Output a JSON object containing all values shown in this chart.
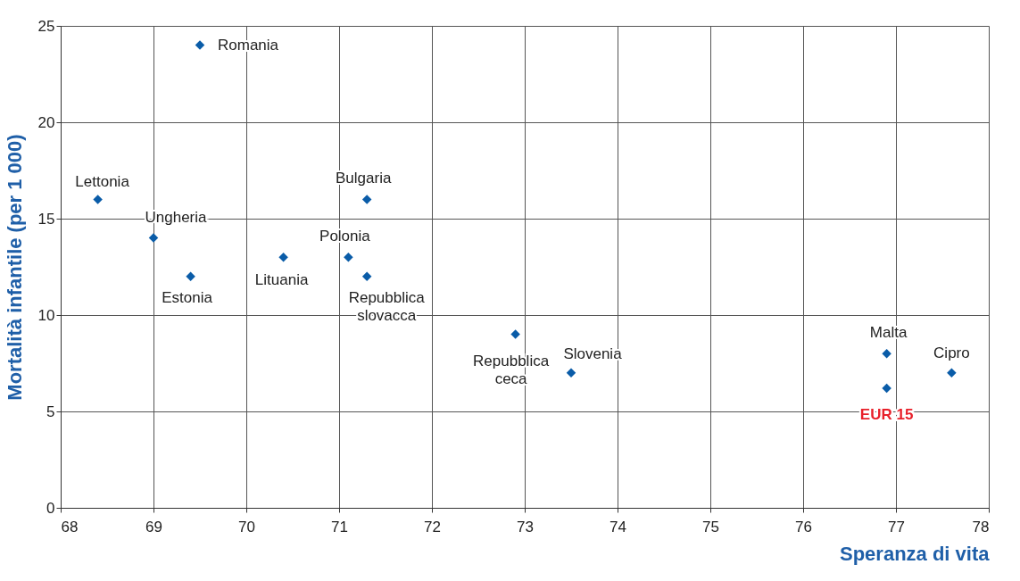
{
  "chart_data": {
    "type": "scatter",
    "xlabel": "Speranza di vita",
    "ylabel": "Mortalità infantile (per 1 000)",
    "x": [
      69.5,
      68.4,
      69.0,
      69.4,
      70.4,
      71.3,
      71.1,
      71.3,
      72.9,
      73.5,
      76.9,
      76.9,
      77.6
    ],
    "series": [
      {
        "color": "#0a5ca8",
        "values": [
          24,
          16,
          14,
          12,
          13,
          16,
          13,
          12,
          9,
          7,
          8,
          6.2,
          7
        ]
      }
    ],
    "xlim": [
      68,
      78
    ],
    "xticks": [
      68,
      69,
      70,
      71,
      72,
      73,
      74,
      75,
      76,
      77,
      78
    ],
    "ylim": [
      0,
      25
    ],
    "yticks": [
      0,
      5,
      10,
      15,
      20,
      25
    ],
    "grid": true,
    "marker": "diamond",
    "annotations": [
      {
        "text": "Romania",
        "x": 69.5,
        "y": 24
      },
      {
        "text": "Lettonia",
        "x": 68.4,
        "y": 16
      },
      {
        "text": "Ungheria",
        "x": 69.0,
        "y": 14
      },
      {
        "text": "Estonia",
        "x": 69.4,
        "y": 12
      },
      {
        "text": "Lituania",
        "x": 70.4,
        "y": 13
      },
      {
        "text": "Bulgaria",
        "x": 71.3,
        "y": 16
      },
      {
        "text": "Polonia",
        "x": 71.1,
        "y": 13
      },
      {
        "text": "Repubblica\nslovacca",
        "x": 71.3,
        "y": 12
      },
      {
        "text": "Repubblica\nceca",
        "x": 72.9,
        "y": 9
      },
      {
        "text": "Slovenia",
        "x": 73.5,
        "y": 7
      },
      {
        "text": "Malta",
        "x": 76.9,
        "y": 8
      },
      {
        "text": "EUR 15",
        "x": 76.9,
        "y": 6.2
      },
      {
        "text": "Cipro",
        "x": 77.6,
        "y": 7
      }
    ]
  }
}
